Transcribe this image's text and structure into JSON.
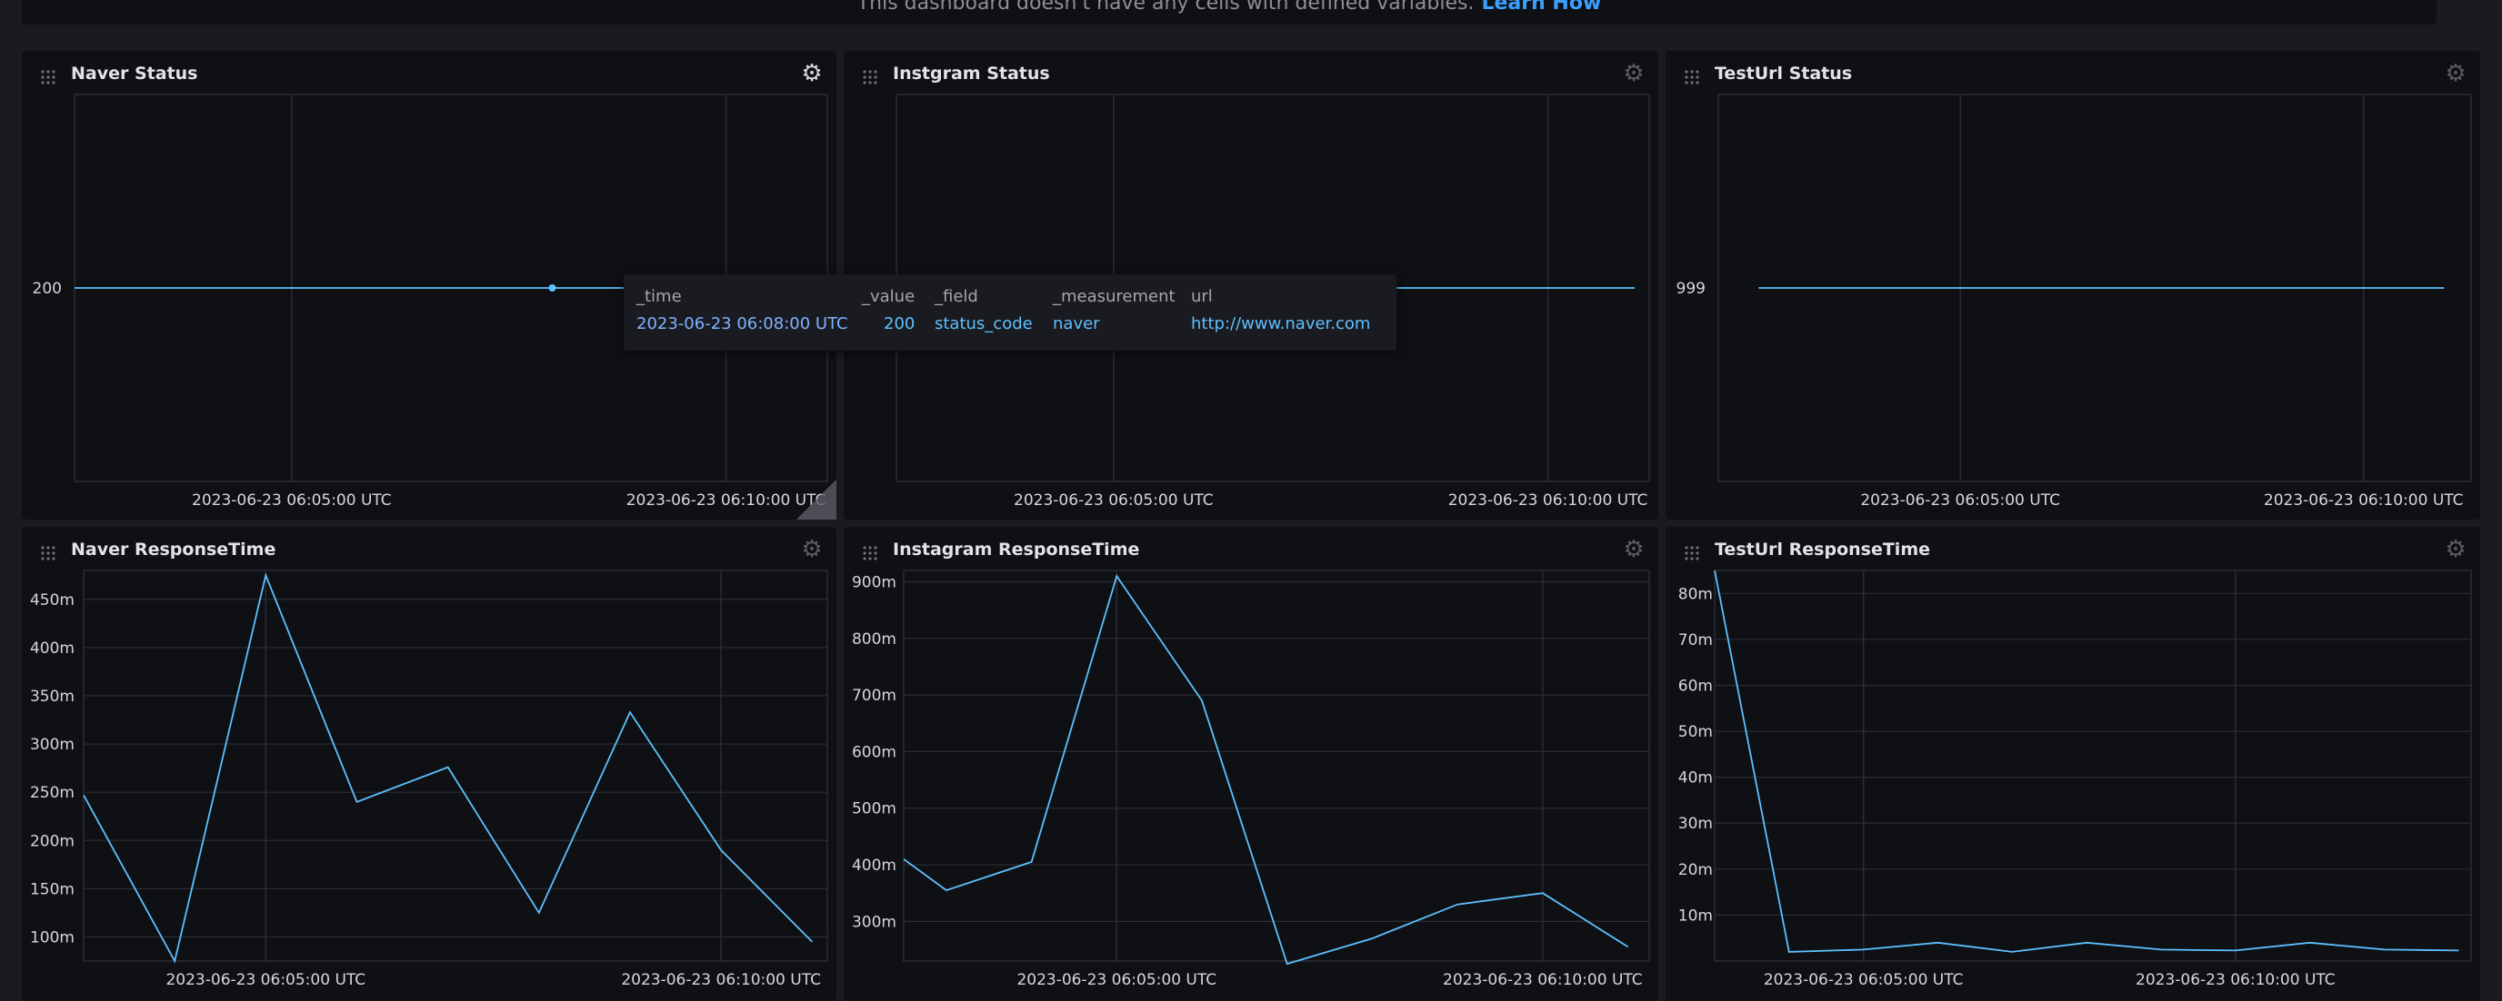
{
  "notice": {
    "text": "This dashboard doesn't have any cells with defined variables.",
    "link": "Learn How"
  },
  "cells": [
    {
      "title": "Naver Status",
      "chart_data": {
        "type": "line",
        "series": [
          {
            "x": [
              "2023-06-23 06:02:30 UTC",
              "2023-06-23 06:11:00 UTC"
            ],
            "values": [
              200,
              200
            ]
          }
        ],
        "highlight_point": {
          "x": "2023-06-23 06:08:00 UTC",
          "y": 200
        },
        "y_ticks": [
          "200"
        ],
        "x_ticks": [
          "2023-06-23 06:05:00 UTC",
          "2023-06-23 06:10:00 UTC"
        ],
        "grid": true
      }
    },
    {
      "title": "Instgram Status",
      "chart_data": {
        "type": "line",
        "series": [
          {
            "x": [
              "2023-06-23 06:02:30 UTC",
              "2023-06-23 06:11:00 UTC"
            ],
            "values": [
              200,
              200
            ]
          }
        ],
        "y_ticks": [],
        "x_ticks": [
          "2023-06-23 06:05:00 UTC",
          "2023-06-23 06:10:00 UTC"
        ],
        "grid": true
      }
    },
    {
      "title": "TestUrl Status",
      "chart_data": {
        "type": "line",
        "series": [
          {
            "x": [
              "2023-06-23 06:02:30 UTC",
              "2023-06-23 06:11:00 UTC"
            ],
            "values": [
              999,
              999
            ]
          }
        ],
        "y_ticks": [
          "999"
        ],
        "x_ticks": [
          "2023-06-23 06:05:00 UTC",
          "2023-06-23 06:10:00 UTC"
        ],
        "grid": true
      }
    },
    {
      "title": "Naver ResponseTime",
      "chart_data": {
        "type": "line",
        "x": [
          "06:03:00",
          "06:04:00",
          "06:05:00",
          "06:06:00",
          "06:07:00",
          "06:08:00",
          "06:09:00",
          "06:10:00",
          "06:11:00"
        ],
        "series": [
          {
            "values": [
              247,
              75,
              475,
              240,
              276,
              125,
              333,
              190,
              95
            ]
          }
        ],
        "y_unit": "m",
        "y_ticks": [
          "100m",
          "150m",
          "200m",
          "250m",
          "300m",
          "350m",
          "400m",
          "450m"
        ],
        "x_ticks": [
          "2023-06-23 06:05:00 UTC",
          "2023-06-23 06:10:00 UTC"
        ],
        "grid": true
      }
    },
    {
      "title": "Instagram ResponseTime",
      "chart_data": {
        "type": "line",
        "x": [
          "06:02:30",
          "06:03:00",
          "06:04:00",
          "06:05:00",
          "06:06:00",
          "06:07:00",
          "06:08:00",
          "06:09:00",
          "06:10:00",
          "06:11:00"
        ],
        "series": [
          {
            "values": [
              410,
              355,
              405,
              910,
              690,
              225,
              270,
              330,
              350,
              255
            ]
          }
        ],
        "y_unit": "m",
        "y_ticks": [
          "300m",
          "400m",
          "500m",
          "600m",
          "700m",
          "800m",
          "900m"
        ],
        "x_ticks": [
          "2023-06-23 06:05:00 UTC",
          "2023-06-23 06:10:00 UTC"
        ],
        "grid": true
      }
    },
    {
      "title": "TestUrl ResponseTime",
      "chart_data": {
        "type": "line",
        "x": [
          "06:03:00",
          "06:04:00",
          "06:05:00",
          "06:06:00",
          "06:07:00",
          "06:08:00",
          "06:09:00",
          "06:10:00",
          "06:11:00",
          "06:12:00",
          "06:13:00"
        ],
        "series": [
          {
            "values": [
              85,
              2,
              2.5,
              4,
              2,
              4,
              2.5,
              2.3,
              4,
              2.5,
              2.3
            ]
          }
        ],
        "y_unit": "m",
        "y_ticks": [
          "10m",
          "20m",
          "30m",
          "40m",
          "50m",
          "60m",
          "70m",
          "80m"
        ],
        "x_ticks": [
          "2023-06-23 06:05:00 UTC",
          "2023-06-23 06:10:00 UTC"
        ],
        "grid": true
      }
    }
  ],
  "tooltip": {
    "columns": [
      {
        "header": "_time",
        "value": "2023-06-23 06:08:00 UTC"
      },
      {
        "header": "_value",
        "value": "200"
      },
      {
        "header": "_field",
        "value": "status_code"
      },
      {
        "header": "_measurement",
        "value": "naver"
      },
      {
        "header": "url",
        "value": "http://www.naver.com"
      }
    ]
  },
  "colors": {
    "line": "#5ec0ff",
    "grid": "#2b2c35",
    "axis_text": "#d5d6de",
    "link": "#3aa0ff"
  },
  "icons": {
    "drag": "drag-handle-icon",
    "settings": "gear-icon"
  }
}
